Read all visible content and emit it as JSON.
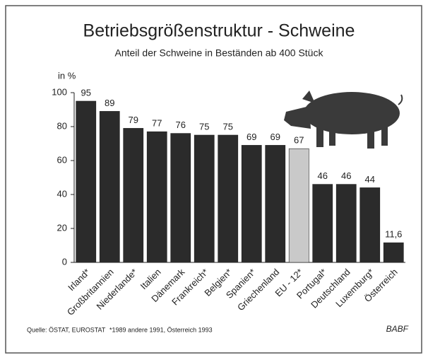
{
  "chart_data": {
    "type": "bar",
    "title": "Betriebsgrößenstruktur - Schweine",
    "subtitle": "Anteil der Schweine in Beständen ab 400 Stück",
    "y_label": "in %",
    "categories": [
      "Irland*",
      "Großbritannien",
      "Niederlande*",
      "Italien",
      "Dänemark",
      "Frankreich*",
      "Belgien*",
      "Spanien*",
      "Griechenland",
      "EU - 12*",
      "Portugal*",
      "Deutschland",
      "Luxemburg*",
      "Österreich"
    ],
    "values": [
      95,
      89,
      79,
      77,
      76,
      75,
      75,
      69,
      69,
      67,
      46,
      46,
      44,
      11.6
    ],
    "value_labels": [
      "95",
      "89",
      "79",
      "77",
      "76",
      "75",
      "75",
      "69",
      "69",
      "67",
      "46",
      "46",
      "44",
      "11,6"
    ],
    "colors": [
      "#2b2b2b",
      "#2b2b2b",
      "#2b2b2b",
      "#2b2b2b",
      "#2b2b2b",
      "#2b2b2b",
      "#2b2b2b",
      "#2b2b2b",
      "#2b2b2b",
      "#c9c9c9",
      "#2b2b2b",
      "#2b2b2b",
      "#2b2b2b",
      "#2b2b2b"
    ],
    "ylim": [
      0,
      100
    ],
    "yticks": [
      0,
      20,
      40,
      60,
      80,
      100
    ],
    "grid": false,
    "source": "Quelle: ÖSTAT, EUROSTAT",
    "footnote": "*1989 andere 1991, Österreich 1993",
    "credit": "BABF"
  }
}
